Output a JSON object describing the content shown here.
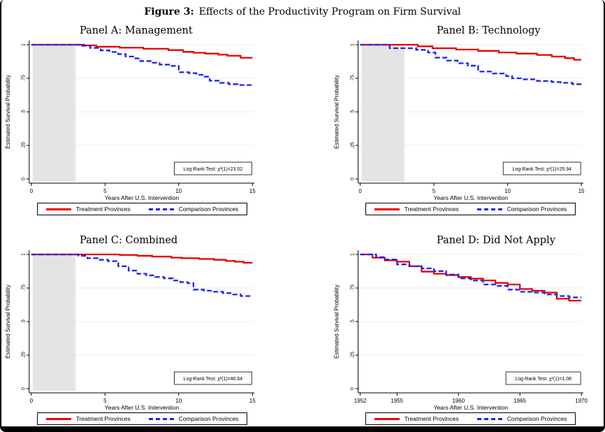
{
  "figure": {
    "title_prefix": "Figure 3:",
    "title_text": "Effects of the Productivity Program on Firm Survival"
  },
  "colors": {
    "treatment": "#e60000",
    "comparison": "#2020ee",
    "gridline": "#e3ecee",
    "shade": "#e4e4e4",
    "axis": "#000000",
    "text": "#000000"
  },
  "legend": {
    "treatment_label": "Treatment Provinces",
    "comparison_label": "Comparison Provinces"
  },
  "chart_data": [
    {
      "type": "line",
      "title": "Panel A: Management",
      "xlabel": "Years After U.S. Intervention",
      "ylabel": "Estimated Survival Probability",
      "xlim": [
        0,
        15
      ],
      "ylim": [
        0,
        1
      ],
      "xticks": [
        0,
        5,
        10,
        15
      ],
      "xtick_labels": [
        "0",
        "5",
        "10",
        "15"
      ],
      "yticks": [
        0,
        0.25,
        0.5,
        0.75,
        1
      ],
      "ytick_labels": [
        "0",
        ".25",
        ".5",
        ".75",
        "1"
      ],
      "shaded_region": {
        "x0": 0.1,
        "x1": 3
      },
      "logrank_label": "Log-Rank Test: χ²(1)=23.02",
      "series": [
        {
          "name": "Treatment Provinces",
          "style": "solid",
          "color_key": "treatment",
          "steps": [
            [
              0,
              1
            ],
            [
              3.6,
              0.995
            ],
            [
              4.4,
              0.985
            ],
            [
              6.0,
              0.978
            ],
            [
              7.6,
              0.97
            ],
            [
              9.3,
              0.96
            ],
            [
              10.3,
              0.947
            ],
            [
              11.0,
              0.94
            ],
            [
              11.8,
              0.934
            ],
            [
              12.7,
              0.926
            ],
            [
              13.3,
              0.918
            ],
            [
              14.2,
              0.903
            ]
          ]
        },
        {
          "name": "Comparison Provinces",
          "style": "dashed",
          "color_key": "comparison",
          "steps": [
            [
              0,
              1
            ],
            [
              3.3,
              0.992
            ],
            [
              4.0,
              0.976
            ],
            [
              4.7,
              0.958
            ],
            [
              5.3,
              0.946
            ],
            [
              5.9,
              0.93
            ],
            [
              6.4,
              0.912
            ],
            [
              7.0,
              0.898
            ],
            [
              7.4,
              0.878
            ],
            [
              8.1,
              0.866
            ],
            [
              8.7,
              0.852
            ],
            [
              9.4,
              0.842
            ],
            [
              10.0,
              0.795
            ],
            [
              10.7,
              0.788
            ],
            [
              11.2,
              0.776
            ],
            [
              11.7,
              0.762
            ],
            [
              12.1,
              0.732
            ],
            [
              12.8,
              0.716
            ],
            [
              13.4,
              0.706
            ],
            [
              14.0,
              0.7
            ]
          ]
        }
      ]
    },
    {
      "type": "line",
      "title": "Panel B: Technology",
      "xlabel": "Years After U.S. Intervention",
      "ylabel": "Estimated Survival Probability",
      "xlim": [
        0,
        15
      ],
      "ylim": [
        0,
        1
      ],
      "xticks": [
        0,
        5,
        10,
        15
      ],
      "xtick_labels": [
        "0",
        "5",
        "10",
        "15"
      ],
      "yticks": [
        0,
        0.25,
        0.5,
        0.75,
        1
      ],
      "ytick_labels": [
        "0",
        ".25",
        ".5",
        ".75",
        "1"
      ],
      "shaded_region": {
        "x0": 0.1,
        "x1": 3
      },
      "logrank_label": "Log-Rank Test: χ²(1)=25.94",
      "series": [
        {
          "name": "Treatment Provinces",
          "style": "solid",
          "color_key": "treatment",
          "steps": [
            [
              0,
              1
            ],
            [
              3.9,
              0.988
            ],
            [
              4.9,
              0.974
            ],
            [
              6.5,
              0.964
            ],
            [
              8.0,
              0.954
            ],
            [
              9.4,
              0.942
            ],
            [
              10.6,
              0.934
            ],
            [
              12.0,
              0.924
            ],
            [
              13.0,
              0.912
            ],
            [
              13.9,
              0.9
            ],
            [
              14.5,
              0.888
            ]
          ]
        },
        {
          "name": "Comparison Provinces",
          "style": "dashed",
          "color_key": "comparison",
          "steps": [
            [
              0,
              1
            ],
            [
              2.0,
              0.974
            ],
            [
              3.8,
              0.962
            ],
            [
              4.6,
              0.942
            ],
            [
              5.1,
              0.904
            ],
            [
              5.9,
              0.882
            ],
            [
              6.6,
              0.862
            ],
            [
              7.3,
              0.844
            ],
            [
              8.0,
              0.8
            ],
            [
              9.0,
              0.786
            ],
            [
              9.9,
              0.766
            ],
            [
              10.3,
              0.75
            ],
            [
              11.0,
              0.742
            ],
            [
              12.0,
              0.73
            ],
            [
              13.0,
              0.722
            ],
            [
              13.6,
              0.716
            ],
            [
              14.4,
              0.706
            ]
          ]
        }
      ]
    },
    {
      "type": "line",
      "title": "Panel C: Combined",
      "xlabel": "Years After U.S. Intervention",
      "ylabel": "Estimated Survival Probability",
      "xlim": [
        0,
        15
      ],
      "ylim": [
        0,
        1
      ],
      "xticks": [
        0,
        5,
        10,
        15
      ],
      "xtick_labels": [
        "0",
        "5",
        "10",
        "15"
      ],
      "yticks": [
        0,
        0.25,
        0.5,
        0.75,
        1
      ],
      "ytick_labels": [
        "0",
        ".25",
        ".5",
        ".75",
        "1"
      ],
      "shaded_region": {
        "x0": 0.1,
        "x1": 3
      },
      "logrank_label": "Log-Rank Test: χ²(1)=46.64",
      "series": [
        {
          "name": "Treatment Provinces",
          "style": "solid",
          "color_key": "treatment",
          "steps": [
            [
              0,
              1
            ],
            [
              6.0,
              0.996
            ],
            [
              7.2,
              0.99
            ],
            [
              8.2,
              0.984
            ],
            [
              9.5,
              0.976
            ],
            [
              10.2,
              0.972
            ],
            [
              11.4,
              0.966
            ],
            [
              12.4,
              0.96
            ],
            [
              13.2,
              0.952
            ],
            [
              13.8,
              0.946
            ],
            [
              14.4,
              0.938
            ]
          ]
        },
        {
          "name": "Comparison Provinces",
          "style": "dashed",
          "color_key": "comparison",
          "steps": [
            [
              0,
              1
            ],
            [
              3.2,
              0.99
            ],
            [
              3.8,
              0.972
            ],
            [
              4.5,
              0.96
            ],
            [
              5.2,
              0.95
            ],
            [
              5.9,
              0.912
            ],
            [
              6.6,
              0.88
            ],
            [
              7.2,
              0.856
            ],
            [
              7.8,
              0.844
            ],
            [
              8.4,
              0.832
            ],
            [
              9.0,
              0.822
            ],
            [
              9.6,
              0.806
            ],
            [
              10.1,
              0.794
            ],
            [
              10.6,
              0.786
            ],
            [
              11.0,
              0.738
            ],
            [
              11.7,
              0.73
            ],
            [
              12.4,
              0.722
            ],
            [
              13.0,
              0.712
            ],
            [
              13.6,
              0.702
            ],
            [
              14.2,
              0.69
            ]
          ]
        }
      ]
    },
    {
      "type": "line",
      "title": "Panel D: Did Not Apply",
      "xlabel": "Years After U.S. Intervention",
      "ylabel": "Estimated Survival Probability",
      "xlim": [
        1952,
        1970
      ],
      "ylim": [
        0,
        1
      ],
      "xticks": [
        1952,
        1955,
        1960,
        1965,
        1970
      ],
      "xtick_labels": [
        "1952",
        "1955",
        "1960",
        "1965",
        "1970"
      ],
      "yticks": [
        0,
        0.25,
        0.5,
        0.75,
        1
      ],
      "ytick_labels": [
        "0",
        ".25",
        ".5",
        ".75",
        "1"
      ],
      "shaded_region": null,
      "logrank_label": "Log-Rank Test: χ²(1)=1.08",
      "series": [
        {
          "name": "Treatment Provinces",
          "style": "solid",
          "color_key": "treatment",
          "steps": [
            [
              1952,
              1
            ],
            [
              1953,
              0.976
            ],
            [
              1954,
              0.956
            ],
            [
              1955,
              0.946
            ],
            [
              1956,
              0.912
            ],
            [
              1957,
              0.872
            ],
            [
              1958,
              0.856
            ],
            [
              1959,
              0.846
            ],
            [
              1960,
              0.832
            ],
            [
              1961,
              0.82
            ],
            [
              1962,
              0.806
            ],
            [
              1963,
              0.788
            ],
            [
              1964,
              0.776
            ],
            [
              1965,
              0.742
            ],
            [
              1966,
              0.73
            ],
            [
              1967,
              0.716
            ],
            [
              1968,
              0.67
            ],
            [
              1969,
              0.656
            ]
          ]
        },
        {
          "name": "Comparison Provinces",
          "style": "dashed",
          "color_key": "comparison",
          "steps": [
            [
              1952,
              1
            ],
            [
              1953.3,
              0.98
            ],
            [
              1954,
              0.962
            ],
            [
              1955,
              0.926
            ],
            [
              1956,
              0.912
            ],
            [
              1957,
              0.896
            ],
            [
              1958,
              0.876
            ],
            [
              1959,
              0.85
            ],
            [
              1960,
              0.822
            ],
            [
              1961,
              0.806
            ],
            [
              1962,
              0.776
            ],
            [
              1963,
              0.766
            ],
            [
              1964,
              0.738
            ],
            [
              1965,
              0.722
            ],
            [
              1966,
              0.716
            ],
            [
              1967,
              0.702
            ],
            [
              1968,
              0.69
            ],
            [
              1969,
              0.68
            ]
          ]
        }
      ]
    }
  ]
}
